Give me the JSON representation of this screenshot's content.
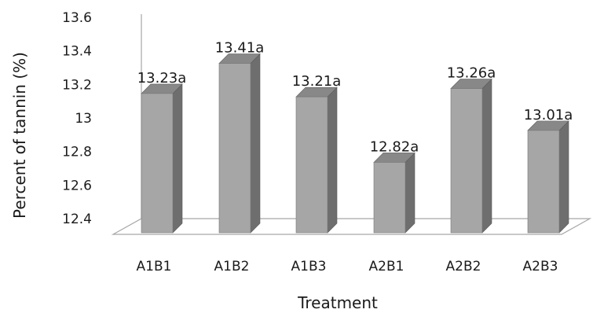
{
  "chart_data": {
    "type": "bar",
    "style": "3d-column",
    "title": "",
    "xlabel": "Treatment",
    "ylabel": "Percent of tannin (%)",
    "ylim": [
      12.4,
      13.6
    ],
    "yticks": [
      "12.4",
      "12.6",
      "12.8",
      "13",
      "13.2",
      "13.4",
      "13.6"
    ],
    "categories": [
      "A1B1",
      "A1B2",
      "A1B3",
      "A2B1",
      "A2B2",
      "A2B3"
    ],
    "values": [
      13.23,
      13.41,
      13.21,
      12.82,
      13.26,
      13.01
    ],
    "data_labels": [
      "13.23a",
      "13.41a",
      "13.21a",
      "12.82a",
      "13.26a",
      "13.01a"
    ],
    "grid": false,
    "legend": "none",
    "colors": {
      "bar_front": "#a6a6a6",
      "bar_side": "#6e6e6e",
      "bar_top": "#888888",
      "floor": "#d9d9d9"
    }
  }
}
